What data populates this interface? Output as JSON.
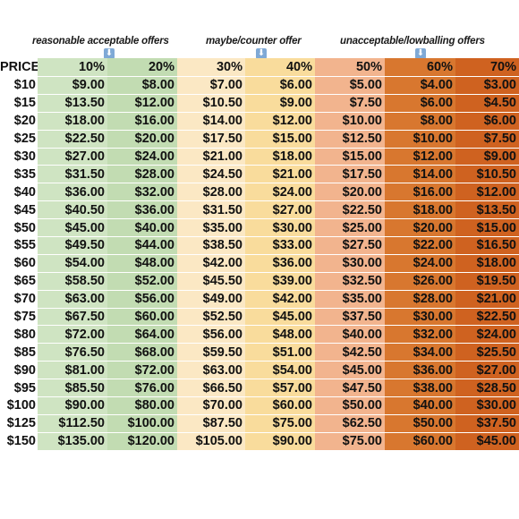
{
  "categories": {
    "acceptable": "reasonable acceptable offers",
    "maybe": "maybe/counter offer",
    "unacceptable": "unacceptable/lowballing offers"
  },
  "headers": [
    "PRICE",
    "10%",
    "20%",
    "30%",
    "40%",
    "50%",
    "60%",
    "70%"
  ],
  "rows": [
    [
      "$10",
      "$9.00",
      "$8.00",
      "$7.00",
      "$6.00",
      "$5.00",
      "$4.00",
      "$3.00"
    ],
    [
      "$15",
      "$13.50",
      "$12.00",
      "$10.50",
      "$9.00",
      "$7.50",
      "$6.00",
      "$4.50"
    ],
    [
      "$20",
      "$18.00",
      "$16.00",
      "$14.00",
      "$12.00",
      "$10.00",
      "$8.00",
      "$6.00"
    ],
    [
      "$25",
      "$22.50",
      "$20.00",
      "$17.50",
      "$15.00",
      "$12.50",
      "$10.00",
      "$7.50"
    ],
    [
      "$30",
      "$27.00",
      "$24.00",
      "$21.00",
      "$18.00",
      "$15.00",
      "$12.00",
      "$9.00"
    ],
    [
      "$35",
      "$31.50",
      "$28.00",
      "$24.50",
      "$21.00",
      "$17.50",
      "$14.00",
      "$10.50"
    ],
    [
      "$40",
      "$36.00",
      "$32.00",
      "$28.00",
      "$24.00",
      "$20.00",
      "$16.00",
      "$12.00"
    ],
    [
      "$45",
      "$40.50",
      "$36.00",
      "$31.50",
      "$27.00",
      "$22.50",
      "$18.00",
      "$13.50"
    ],
    [
      "$50",
      "$45.00",
      "$40.00",
      "$35.00",
      "$30.00",
      "$25.00",
      "$20.00",
      "$15.00"
    ],
    [
      "$55",
      "$49.50",
      "$44.00",
      "$38.50",
      "$33.00",
      "$27.50",
      "$22.00",
      "$16.50"
    ],
    [
      "$60",
      "$54.00",
      "$48.00",
      "$42.00",
      "$36.00",
      "$30.00",
      "$24.00",
      "$18.00"
    ],
    [
      "$65",
      "$58.50",
      "$52.00",
      "$45.50",
      "$39.00",
      "$32.50",
      "$26.00",
      "$19.50"
    ],
    [
      "$70",
      "$63.00",
      "$56.00",
      "$49.00",
      "$42.00",
      "$35.00",
      "$28.00",
      "$21.00"
    ],
    [
      "$75",
      "$67.50",
      "$60.00",
      "$52.50",
      "$45.00",
      "$37.50",
      "$30.00",
      "$22.50"
    ],
    [
      "$80",
      "$72.00",
      "$64.00",
      "$56.00",
      "$48.00",
      "$40.00",
      "$32.00",
      "$24.00"
    ],
    [
      "$85",
      "$76.50",
      "$68.00",
      "$59.50",
      "$51.00",
      "$42.50",
      "$34.00",
      "$25.50"
    ],
    [
      "$90",
      "$81.00",
      "$72.00",
      "$63.00",
      "$54.00",
      "$45.00",
      "$36.00",
      "$27.00"
    ],
    [
      "$95",
      "$85.50",
      "$76.00",
      "$66.50",
      "$57.00",
      "$47.50",
      "$38.00",
      "$28.50"
    ],
    [
      "$100",
      "$90.00",
      "$80.00",
      "$70.00",
      "$60.00",
      "$50.00",
      "$40.00",
      "$30.00"
    ],
    [
      "$125",
      "$112.50",
      "$100.00",
      "$87.50",
      "$75.00",
      "$62.50",
      "$50.00",
      "$37.50"
    ],
    [
      "$150",
      "$135.00",
      "$120.00",
      "$105.00",
      "$90.00",
      "$75.00",
      "$60.00",
      "$45.00"
    ]
  ],
  "colors": {
    "acceptable_light": "#cfe4c2",
    "acceptable_dark": "#c2dcb2",
    "maybe_light": "#fbe8c4",
    "maybe_dark": "#f9dc9c",
    "unacceptable_light": "#f2b48e",
    "unacceptable_mid": "#d8772f",
    "unacceptable_dark": "#cf6220"
  },
  "icons": {
    "category_marker": "down-arrow-icon"
  }
}
